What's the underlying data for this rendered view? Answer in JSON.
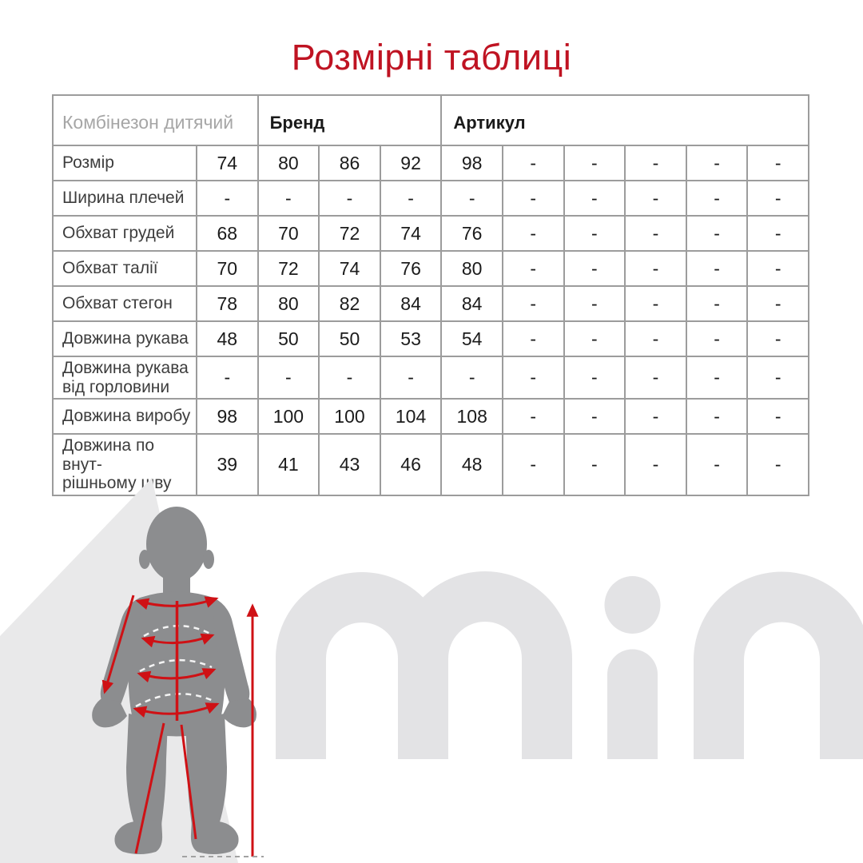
{
  "page": {
    "title": "Розмірні таблиці"
  },
  "table": {
    "product_name": "Комбінезон дитячий",
    "brand_header": "Бренд",
    "article_header": "Артикул",
    "rows": [
      {
        "label": "Розмір",
        "values": [
          "74",
          "80",
          "86",
          "92",
          "98",
          "-",
          "-",
          "-",
          "-",
          "-"
        ]
      },
      {
        "label": "Ширина плечей",
        "values": [
          "-",
          "-",
          "-",
          "-",
          "-",
          "-",
          "-",
          "-",
          "-",
          "-"
        ]
      },
      {
        "label": "Обхват грудей",
        "values": [
          "68",
          "70",
          "72",
          "74",
          "76",
          "-",
          "-",
          "-",
          "-",
          "-"
        ]
      },
      {
        "label": "Обхват талії",
        "values": [
          "70",
          "72",
          "74",
          "76",
          "80",
          "-",
          "-",
          "-",
          "-",
          "-"
        ]
      },
      {
        "label": "Обхват стегон",
        "values": [
          "78",
          "80",
          "82",
          "84",
          "84",
          "-",
          "-",
          "-",
          "-",
          "-"
        ]
      },
      {
        "label": "Довжина рукава",
        "values": [
          "48",
          "50",
          "50",
          "53",
          "54",
          "-",
          "-",
          "-",
          "-",
          "-"
        ]
      },
      {
        "label": "Довжина рукава\nвід горловини",
        "values": [
          "-",
          "-",
          "-",
          "-",
          "-",
          "-",
          "-",
          "-",
          "-",
          "-"
        ]
      },
      {
        "label": "Довжина виробу",
        "values": [
          "98",
          "100",
          "100",
          "104",
          "108",
          "-",
          "-",
          "-",
          "-",
          "-"
        ]
      },
      {
        "label": "Довжина по внут-\nрішньому шву",
        "values": [
          "39",
          "41",
          "43",
          "46",
          "48",
          "-",
          "-",
          "-",
          "-",
          "-"
        ]
      }
    ]
  },
  "diagram": {
    "watermark_text": "min",
    "figure": "child-silhouette",
    "measurement_marks": [
      "chest-girth-arc",
      "waist-girth-arc",
      "hip-girth-arc",
      "seat-girth-arc",
      "sleeve-length-arrow",
      "height-arrow",
      "inseam-lines"
    ]
  },
  "colors": {
    "title_red": "#bf1322",
    "measure_red": "#cf1115",
    "silhouette_gray": "#8c8d8f",
    "watermark_gray": "#e3e3e5",
    "backdrop_gray": "#e9e9ea",
    "table_border_gray": "#9c9c9c"
  }
}
